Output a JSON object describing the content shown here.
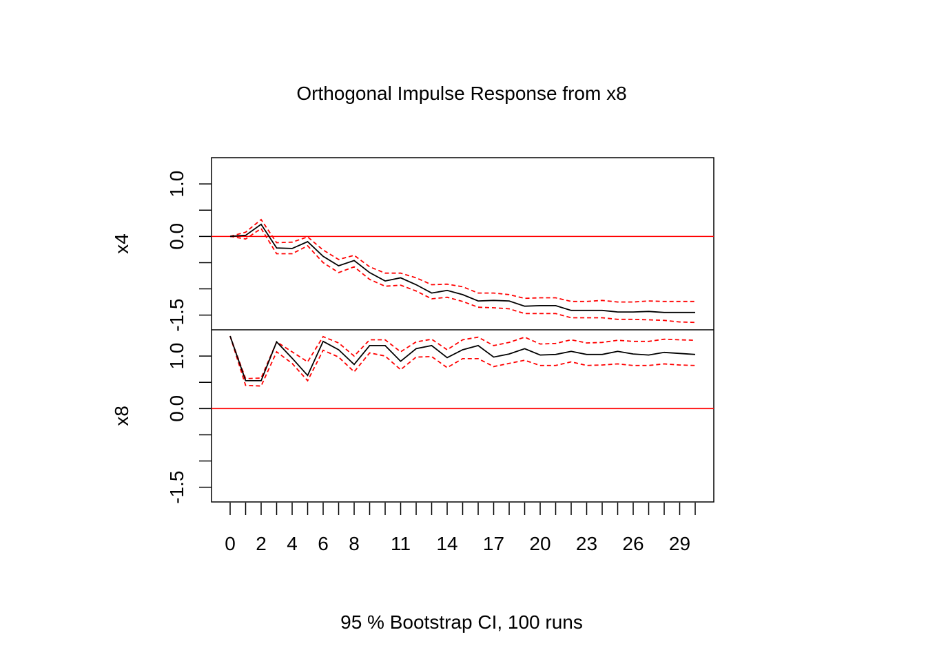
{
  "title": "Orthogonal Impulse Response from x8",
  "footer": "95 % Bootstrap CI,  100 runs",
  "colors": {
    "response": "#000000",
    "ci": "#ff0000",
    "zero_line": "#ff0000",
    "frame": "#000000"
  },
  "chart_data": {
    "type": "line",
    "x": [
      0,
      1,
      2,
      3,
      4,
      5,
      6,
      7,
      8,
      9,
      10,
      11,
      12,
      13,
      14,
      15,
      16,
      17,
      18,
      19,
      20,
      21,
      22,
      23,
      24,
      25,
      26,
      27,
      28,
      29,
      30
    ],
    "x_tick_labels": [
      "0",
      "2",
      "4",
      "6",
      "8",
      "11",
      "14",
      "17",
      "20",
      "23",
      "26",
      "29"
    ],
    "x_tick_label_positions": [
      0,
      2,
      4,
      6,
      8,
      11,
      14,
      17,
      20,
      23,
      26,
      29
    ],
    "x_minor_ticks": [
      0,
      1,
      2,
      3,
      4,
      5,
      6,
      7,
      8,
      9,
      10,
      11,
      12,
      13,
      14,
      15,
      16,
      17,
      18,
      19,
      20,
      21,
      22,
      23,
      24,
      25,
      26,
      27,
      28,
      29,
      30
    ],
    "xlim": [
      -1.2,
      31.2
    ],
    "panels": [
      {
        "ylabel": "x4",
        "ylim": [
          -1.78,
          1.5
        ],
        "y_tick_labels": [
          "-1.5",
          "0.0",
          "1.0"
        ],
        "y_tick_label_values": [
          -1.5,
          0.0,
          1.0
        ],
        "y_minor_ticks": [
          -1.5,
          -1.0,
          -0.5,
          0.0,
          0.5,
          1.0
        ],
        "zero_line": 0.0,
        "response": [
          0.0,
          0.02,
          0.23,
          -0.22,
          -0.23,
          -0.1,
          -0.38,
          -0.56,
          -0.46,
          -0.69,
          -0.85,
          -0.79,
          -0.92,
          -1.08,
          -1.03,
          -1.11,
          -1.23,
          -1.22,
          -1.23,
          -1.33,
          -1.32,
          -1.32,
          -1.41,
          -1.41,
          -1.41,
          -1.44,
          -1.44,
          -1.43,
          -1.45,
          -1.45,
          -1.45
        ],
        "ci_lower": [
          0.0,
          -0.05,
          0.15,
          -0.33,
          -0.33,
          -0.18,
          -0.5,
          -0.69,
          -0.58,
          -0.82,
          -0.95,
          -0.93,
          -1.04,
          -1.19,
          -1.16,
          -1.24,
          -1.35,
          -1.36,
          -1.38,
          -1.47,
          -1.47,
          -1.47,
          -1.55,
          -1.55,
          -1.55,
          -1.58,
          -1.58,
          -1.59,
          -1.6,
          -1.63,
          -1.64
        ],
        "ci_upper": [
          0.0,
          0.08,
          0.32,
          -0.12,
          -0.11,
          -0.01,
          -0.26,
          -0.44,
          -0.36,
          -0.58,
          -0.7,
          -0.7,
          -0.79,
          -0.92,
          -0.91,
          -0.96,
          -1.08,
          -1.08,
          -1.11,
          -1.18,
          -1.17,
          -1.17,
          -1.24,
          -1.24,
          -1.22,
          -1.25,
          -1.25,
          -1.23,
          -1.24,
          -1.24,
          -1.24
        ]
      },
      {
        "ylabel": "x8",
        "ylim": [
          -1.78,
          1.5
        ],
        "y_tick_labels": [
          "-1.5",
          "0.0",
          "1.0"
        ],
        "y_tick_label_values": [
          -1.5,
          0.0,
          1.0
        ],
        "y_minor_ticks": [
          -1.5,
          -1.0,
          -0.5,
          0.0,
          0.5,
          1.0
        ],
        "zero_line": 0.0,
        "response": [
          1.38,
          0.53,
          0.53,
          1.27,
          0.96,
          0.63,
          1.28,
          1.12,
          0.84,
          1.2,
          1.2,
          0.9,
          1.14,
          1.2,
          0.97,
          1.12,
          1.2,
          0.98,
          1.04,
          1.14,
          1.02,
          1.03,
          1.09,
          1.03,
          1.03,
          1.09,
          1.04,
          1.02,
          1.07,
          1.05,
          1.03
        ],
        "ci_lower": [
          1.38,
          0.44,
          0.43,
          1.08,
          0.86,
          0.53,
          1.11,
          0.98,
          0.7,
          1.06,
          1.0,
          0.74,
          0.98,
          0.99,
          0.78,
          0.95,
          0.95,
          0.8,
          0.86,
          0.92,
          0.82,
          0.82,
          0.89,
          0.82,
          0.83,
          0.85,
          0.82,
          0.82,
          0.85,
          0.83,
          0.82
        ],
        "ci_upper": [
          1.38,
          0.57,
          0.58,
          1.27,
          1.08,
          0.89,
          1.37,
          1.25,
          1.0,
          1.31,
          1.31,
          1.08,
          1.27,
          1.32,
          1.12,
          1.31,
          1.36,
          1.2,
          1.26,
          1.36,
          1.23,
          1.24,
          1.31,
          1.25,
          1.26,
          1.3,
          1.28,
          1.28,
          1.32,
          1.31,
          1.3
        ]
      }
    ]
  }
}
